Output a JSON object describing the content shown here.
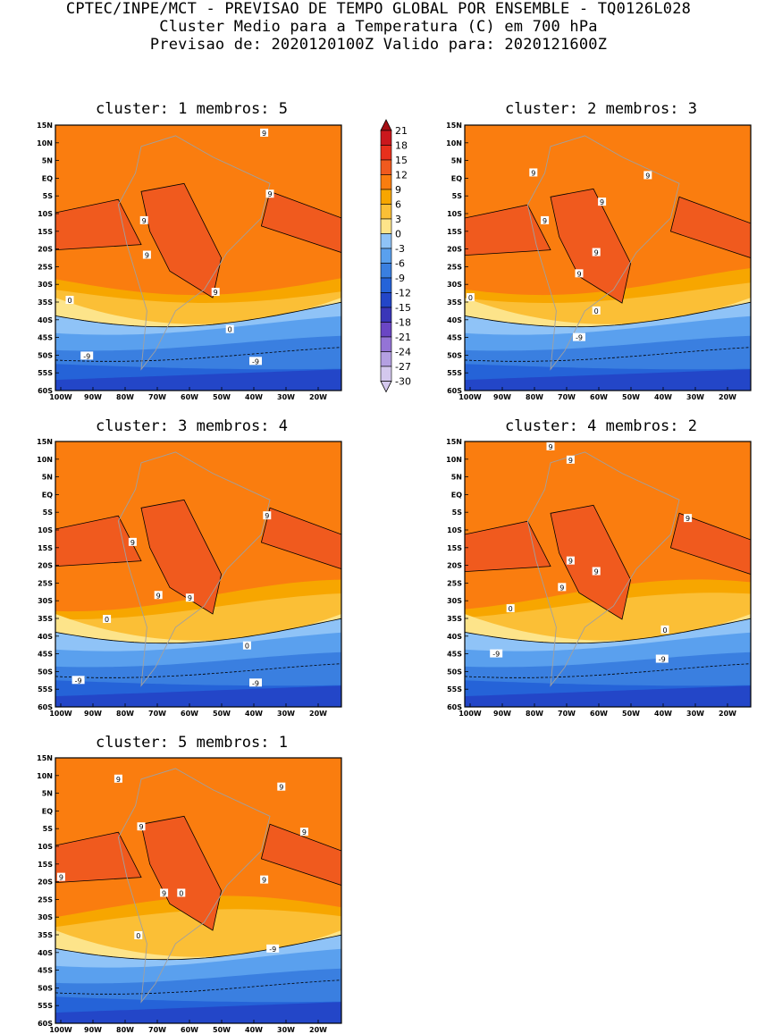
{
  "header": {
    "line1": "CPTEC/INPE/MCT - PREVISAO DE TEMPO GLOBAL POR ENSEMBLE - TQ0126L028",
    "line2": "Cluster Medio para a Temperatura (C) em 700 hPa",
    "line3": "Previsao de: 2020120100Z   Valido para: 2020121600Z"
  },
  "panels": [
    {
      "title": "cluster: 1   membros: 5",
      "contour_labels": [
        "9",
        "9",
        "9",
        "9",
        "9",
        "0",
        "0",
        "-9",
        "-9"
      ]
    },
    {
      "title": "cluster: 2   membros: 3",
      "contour_labels": [
        "9",
        "9",
        "9",
        "9",
        "9",
        "9",
        "0",
        "0",
        "-9"
      ]
    },
    {
      "title": "cluster: 3   membros: 4",
      "contour_labels": [
        "9",
        "9",
        "9",
        "9",
        "0",
        "0",
        "-9",
        "-9"
      ]
    },
    {
      "title": "cluster: 4   membros: 2",
      "contour_labels": [
        "9",
        "9",
        "9",
        "9",
        "9",
        "9",
        "0",
        "0",
        "-9",
        "-9"
      ]
    },
    {
      "title": "cluster: 5   membros: 1",
      "contour_labels": [
        "9",
        "9",
        "9",
        "9",
        "9",
        "9",
        "9",
        "0",
        "0",
        "-9"
      ]
    }
  ],
  "axes": {
    "lat_labels": [
      "15N",
      "10N",
      "5N",
      "EQ",
      "5S",
      "10S",
      "15S",
      "20S",
      "25S",
      "30S",
      "35S",
      "40S",
      "45S",
      "50S",
      "55S",
      "60S"
    ],
    "lon_labels": [
      "100W",
      "90W",
      "80W",
      "70W",
      "60W",
      "50W",
      "40W",
      "30W",
      "20W"
    ]
  },
  "colorbar": {
    "levels": [
      "21",
      "18",
      "15",
      "12",
      "9",
      "6",
      "3",
      "0",
      "-3",
      "-6",
      "-9",
      "-12",
      "-15",
      "-18",
      "-21",
      "-24",
      "-27",
      "-30"
    ],
    "colors": [
      "#a50f15",
      "#cb181d",
      "#e8301c",
      "#f05a1e",
      "#fa7d0f",
      "#f7a600",
      "#fbbf36",
      "#fde48a",
      "#8fc3f7",
      "#5aa0ee",
      "#3a7fe0",
      "#2563d8",
      "#2346c8",
      "#3a36b8",
      "#6a46c4",
      "#9474d6",
      "#b4a0e2",
      "#d4c8ee"
    ]
  }
}
